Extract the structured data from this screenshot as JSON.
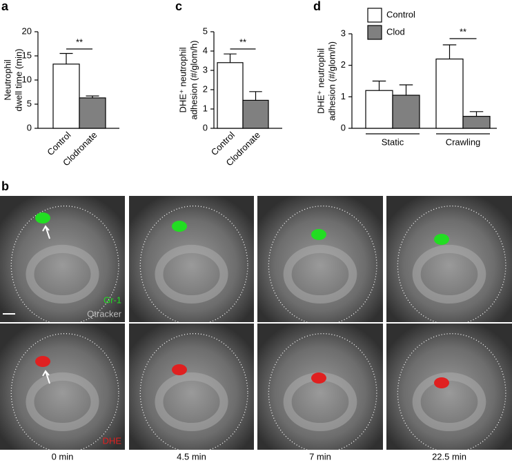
{
  "panel_labels": [
    "a",
    "c",
    "d",
    "b"
  ],
  "chart_data": [
    {
      "type": "bar",
      "ylabel": [
        "Neutrophil",
        "dwell time (min)"
      ],
      "categories": [
        "Control",
        "Clodronate"
      ],
      "values": [
        13.3,
        6.3
      ],
      "errors": [
        2.2,
        0.4
      ],
      "colors": [
        "#ffffff",
        "#808080"
      ],
      "ylim": [
        0,
        20
      ],
      "yticks": [
        0,
        5,
        10,
        15,
        20
      ],
      "annotation": "**"
    },
    {
      "type": "bar",
      "ylabel": [
        "DHE⁺ neutrophil",
        "adhesion (#/glom/h)"
      ],
      "categories": [
        "Control",
        "Clodronate"
      ],
      "values": [
        3.4,
        1.45
      ],
      "errors": [
        0.45,
        0.45
      ],
      "colors": [
        "#ffffff",
        "#808080"
      ],
      "ylim": [
        0,
        5
      ],
      "yticks": [
        0,
        1,
        2,
        3,
        4,
        5
      ],
      "annotation": "**"
    },
    {
      "type": "grouped-bar",
      "ylabel": [
        "DHE⁺ neutrophil",
        "adhesion (#/glom/h)"
      ],
      "categories": [
        "Static",
        "Crawling"
      ],
      "series": [
        {
          "name": "Control",
          "color": "#ffffff",
          "values": [
            1.2,
            2.2
          ],
          "errors": [
            0.3,
            0.45
          ]
        },
        {
          "name": "Clod",
          "color": "#808080",
          "values": [
            1.05,
            0.38
          ],
          "errors": [
            0.33,
            0.15
          ]
        }
      ],
      "ylim": [
        0,
        3
      ],
      "yticks": [
        0,
        1,
        2,
        3
      ],
      "legend": "top-left",
      "annotation": "**"
    }
  ],
  "images": {
    "channel_labels_top": [
      "Gr-1",
      "Qtracker"
    ],
    "channel_label_bottom": "DHE",
    "times": [
      "0 min",
      "4.5 min",
      "7 min",
      "22.5 min"
    ]
  }
}
